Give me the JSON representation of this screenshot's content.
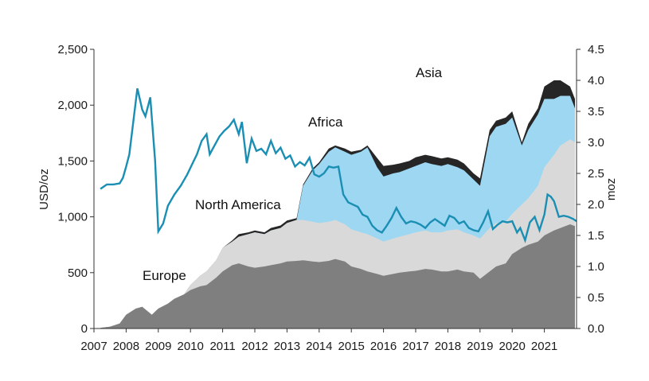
{
  "chart_data": {
    "type": "area",
    "ylabel": "USD/oz",
    "y2label": "moz",
    "ylim": [
      0,
      2500
    ],
    "y2lim": [
      0,
      4.5
    ],
    "x_ticks": [
      "2007",
      "2008",
      "2009",
      "2010",
      "2011",
      "2012",
      "2013",
      "2014",
      "2015",
      "2016",
      "2017",
      "2018",
      "2019",
      "2020",
      "2021"
    ],
    "y_ticks": [
      "0",
      "500",
      "1,000",
      "1,500",
      "2,000",
      "2,500"
    ],
    "y2_ticks": [
      "0.0",
      "0.5",
      "1.0",
      "1.5",
      "2.0",
      "2.5",
      "3.0",
      "3.5",
      "4.0",
      "4.5"
    ],
    "region_labels": {
      "europe": "Europe",
      "north_america": "North America",
      "africa": "Africa",
      "asia": "Asia"
    },
    "colors": {
      "europe": "#7f7f7f",
      "north_america": "#d9d9d9",
      "africa": "#9dd7f2",
      "asia": "#262626",
      "price": "#1a8fb3"
    },
    "stack_series": {
      "x": [
        2007.2,
        2007.5,
        2007.8,
        2008.0,
        2008.3,
        2008.5,
        2008.8,
        2009.0,
        2009.3,
        2009.5,
        2009.8,
        2010.0,
        2010.3,
        2010.5,
        2010.8,
        2011.0,
        2011.3,
        2011.5,
        2011.8,
        2012.0,
        2012.3,
        2012.5,
        2012.8,
        2013.0,
        2013.3,
        2013.5,
        2013.8,
        2014.0,
        2014.3,
        2014.5,
        2014.8,
        2015.0,
        2015.3,
        2015.5,
        2015.8,
        2016.0,
        2016.3,
        2016.5,
        2016.8,
        2017.0,
        2017.3,
        2017.5,
        2017.8,
        2018.0,
        2018.3,
        2018.5,
        2018.8,
        2019.0,
        2019.3,
        2019.5,
        2019.8,
        2020.0,
        2020.3,
        2020.5,
        2020.8,
        2021.0,
        2021.3,
        2021.5,
        2021.8,
        2021.95
      ],
      "europe": [
        0.01,
        0.03,
        0.08,
        0.22,
        0.32,
        0.35,
        0.22,
        0.32,
        0.4,
        0.48,
        0.55,
        0.62,
        0.68,
        0.7,
        0.82,
        0.92,
        1.02,
        1.05,
        1.0,
        0.98,
        1.0,
        1.02,
        1.05,
        1.08,
        1.09,
        1.1,
        1.08,
        1.07,
        1.09,
        1.12,
        1.08,
        1.0,
        0.96,
        0.92,
        0.88,
        0.85,
        0.88,
        0.9,
        0.92,
        0.93,
        0.96,
        0.95,
        0.92,
        0.92,
        0.95,
        0.92,
        0.9,
        0.8,
        0.92,
        1.0,
        1.05,
        1.2,
        1.3,
        1.35,
        1.4,
        1.5,
        1.58,
        1.62,
        1.68,
        1.65
      ],
      "north_america": [
        0.01,
        0.03,
        0.08,
        0.22,
        0.32,
        0.35,
        0.22,
        0.32,
        0.4,
        0.48,
        0.55,
        0.7,
        0.85,
        0.92,
        1.1,
        1.3,
        1.4,
        1.48,
        1.52,
        1.55,
        1.52,
        1.58,
        1.62,
        1.7,
        1.75,
        1.75,
        1.72,
        1.7,
        1.72,
        1.75,
        1.68,
        1.6,
        1.55,
        1.52,
        1.45,
        1.4,
        1.45,
        1.48,
        1.52,
        1.55,
        1.58,
        1.55,
        1.55,
        1.58,
        1.6,
        1.55,
        1.5,
        1.45,
        1.62,
        1.7,
        1.72,
        1.85,
        2.0,
        2.1,
        2.3,
        2.6,
        2.8,
        2.95,
        3.05,
        3.0
      ],
      "africa": [
        0.01,
        0.03,
        0.08,
        0.22,
        0.32,
        0.35,
        0.22,
        0.32,
        0.4,
        0.48,
        0.55,
        0.7,
        0.85,
        0.92,
        1.1,
        1.3,
        1.4,
        1.48,
        1.52,
        1.55,
        1.52,
        1.58,
        1.62,
        1.7,
        1.75,
        2.3,
        2.55,
        2.65,
        2.85,
        2.92,
        2.85,
        2.8,
        2.85,
        2.92,
        2.6,
        2.45,
        2.5,
        2.52,
        2.58,
        2.62,
        2.68,
        2.65,
        2.62,
        2.65,
        2.6,
        2.55,
        2.4,
        2.3,
        3.1,
        3.25,
        3.3,
        3.4,
        2.95,
        3.2,
        3.45,
        3.7,
        3.7,
        3.75,
        3.75,
        3.55
      ],
      "asia": [
        0.01,
        0.03,
        0.08,
        0.22,
        0.32,
        0.35,
        0.22,
        0.32,
        0.4,
        0.48,
        0.55,
        0.7,
        0.85,
        0.92,
        1.1,
        1.3,
        1.42,
        1.52,
        1.55,
        1.58,
        1.55,
        1.62,
        1.66,
        1.74,
        1.78,
        2.32,
        2.58,
        2.68,
        2.9,
        2.95,
        2.9,
        2.85,
        2.88,
        2.95,
        2.75,
        2.62,
        2.64,
        2.66,
        2.7,
        2.76,
        2.8,
        2.78,
        2.74,
        2.76,
        2.72,
        2.66,
        2.5,
        2.42,
        3.2,
        3.35,
        3.4,
        3.5,
        3.0,
        3.3,
        3.55,
        3.9,
        4.0,
        4.0,
        3.9,
        3.7
      ]
    },
    "price_series": {
      "name": "USD/oz",
      "x": [
        2007.2,
        2007.4,
        2007.6,
        2007.8,
        2007.9,
        2008.0,
        2008.1,
        2008.2,
        2008.35,
        2008.5,
        2008.6,
        2008.75,
        2008.9,
        2009.0,
        2009.15,
        2009.3,
        2009.5,
        2009.7,
        2009.9,
        2010.05,
        2010.2,
        2010.35,
        2010.5,
        2010.6,
        2010.75,
        2010.9,
        2011.05,
        2011.2,
        2011.35,
        2011.5,
        2011.6,
        2011.75,
        2011.9,
        2012.05,
        2012.2,
        2012.35,
        2012.5,
        2012.65,
        2012.8,
        2012.95,
        2013.1,
        2013.25,
        2013.4,
        2013.55,
        2013.7,
        2013.85,
        2014.0,
        2014.15,
        2014.3,
        2014.45,
        2014.6,
        2014.75,
        2014.9,
        2015.05,
        2015.2,
        2015.35,
        2015.5,
        2015.65,
        2015.8,
        2015.95,
        2016.1,
        2016.25,
        2016.4,
        2016.55,
        2016.7,
        2016.85,
        2017.0,
        2017.15,
        2017.3,
        2017.45,
        2017.6,
        2017.75,
        2017.9,
        2018.05,
        2018.2,
        2018.35,
        2018.5,
        2018.65,
        2018.8,
        2018.95,
        2019.1,
        2019.25,
        2019.4,
        2019.55,
        2019.7,
        2019.85,
        2020.0,
        2020.15,
        2020.25,
        2020.4,
        2020.55,
        2020.7,
        2020.85,
        2021.0,
        2021.1,
        2021.2,
        2021.3,
        2021.45,
        2021.6,
        2021.75,
        2021.9,
        2022.0
      ],
      "values": [
        1250,
        1290,
        1290,
        1300,
        1350,
        1450,
        1560,
        1800,
        2150,
        1960,
        1900,
        2070,
        1500,
        870,
        940,
        1100,
        1200,
        1280,
        1380,
        1470,
        1560,
        1680,
        1740,
        1560,
        1640,
        1720,
        1770,
        1810,
        1870,
        1740,
        1850,
        1480,
        1700,
        1590,
        1610,
        1560,
        1680,
        1570,
        1620,
        1520,
        1550,
        1450,
        1490,
        1460,
        1530,
        1380,
        1360,
        1390,
        1450,
        1440,
        1450,
        1200,
        1130,
        1110,
        1090,
        1020,
        1000,
        920,
        880,
        860,
        920,
        990,
        1080,
        1000,
        940,
        960,
        950,
        930,
        900,
        950,
        980,
        950,
        920,
        1010,
        990,
        940,
        960,
        900,
        880,
        870,
        950,
        1050,
        890,
        930,
        960,
        950,
        960,
        860,
        900,
        790,
        950,
        1000,
        880,
        1020,
        1200,
        1180,
        1140,
        1000,
        1010,
        1000,
        980,
        960
      ]
    }
  }
}
